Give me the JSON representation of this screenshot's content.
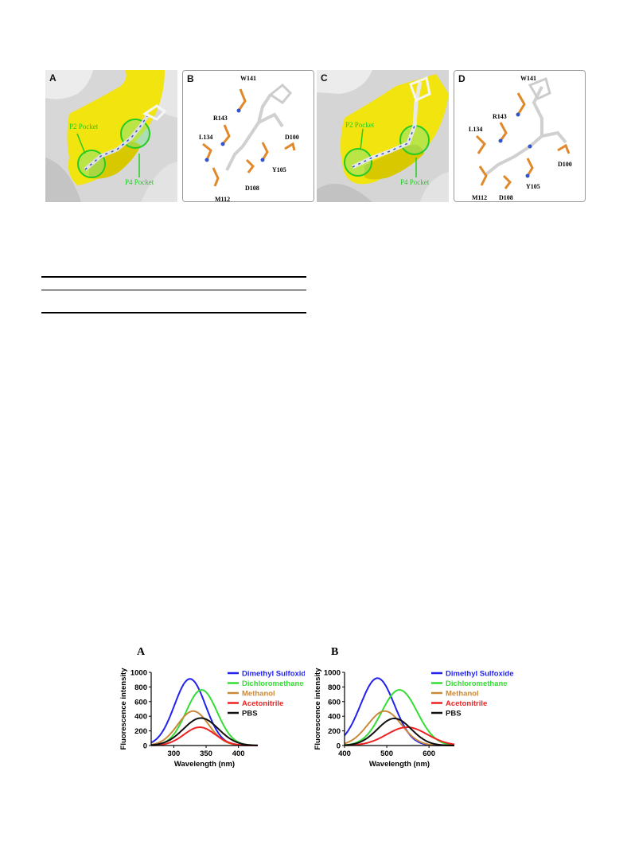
{
  "figure_top": {
    "panels": [
      {
        "letter": "A",
        "type": "surface",
        "pocket_labels": [
          "P2 Pocket",
          "P4 Pocket"
        ]
      },
      {
        "letter": "B",
        "type": "residues",
        "residues": [
          "W141",
          "R143",
          "L134",
          "D100",
          "Y105",
          "D108",
          "M112"
        ]
      },
      {
        "letter": "C",
        "type": "surface",
        "pocket_labels": [
          "P2 Pocket",
          "P4 Pocket"
        ]
      },
      {
        "letter": "D",
        "type": "residues",
        "residues": [
          "W141",
          "R143",
          "L134",
          "D100",
          "Y105",
          "M112",
          "D108"
        ]
      }
    ],
    "colors": {
      "surface": "#d4d4d4",
      "pocket": "#f0e00a",
      "label_green": "#22cc22",
      "residue_orange": "#e0882a",
      "ligand": "#eaeaea",
      "nitrogen": "#3355cc"
    }
  },
  "chart_data": [
    {
      "type": "line",
      "panel_label": "A",
      "xlabel": "Wavelength (nm)",
      "ylabel": "Fluorescence intensity",
      "xlim": [
        265,
        430
      ],
      "ylim": [
        0,
        1000
      ],
      "xticks": [
        300,
        350,
        400
      ],
      "yticks": [
        0,
        200,
        400,
        600,
        800,
        1000
      ],
      "legend_position": "top-right",
      "series": [
        {
          "name": "Dimethyl Sulfoxide",
          "color": "#2222ee",
          "peak_x": 325,
          "peak_y": 910,
          "width": 24
        },
        {
          "name": "Dichloromethane",
          "color": "#33dd33",
          "peak_x": 343,
          "peak_y": 760,
          "width": 24
        },
        {
          "name": "Methanol",
          "color": "#c88a3a",
          "peak_x": 330,
          "peak_y": 470,
          "width": 24
        },
        {
          "name": "Acetonitrile",
          "color": "#ee2222",
          "peak_x": 340,
          "peak_y": 250,
          "width": 24
        },
        {
          "name": "PBS",
          "color": "#111111",
          "peak_x": 342,
          "peak_y": 375,
          "width": 27
        }
      ]
    },
    {
      "type": "line",
      "panel_label": "B",
      "xlabel": "Wavelength (nm)",
      "ylabel": "Fluorescence intensity",
      "xlim": [
        400,
        660
      ],
      "ylim": [
        0,
        1000
      ],
      "xticks": [
        400,
        500,
        600
      ],
      "yticks": [
        0,
        200,
        400,
        600,
        800,
        1000
      ],
      "legend_position": "top-right",
      "series": [
        {
          "name": "Dimethyl Sulfoxide",
          "color": "#2222ee",
          "peak_x": 478,
          "peak_y": 920,
          "width": 40
        },
        {
          "name": "Dichloromethane",
          "color": "#33dd33",
          "peak_x": 530,
          "peak_y": 760,
          "width": 42
        },
        {
          "name": "Methanol",
          "color": "#c88a3a",
          "peak_x": 495,
          "peak_y": 470,
          "width": 40
        },
        {
          "name": "Acetonitrile",
          "color": "#ee2222",
          "peak_x": 548,
          "peak_y": 250,
          "width": 48
        },
        {
          "name": "PBS",
          "color": "#111111",
          "peak_x": 518,
          "peak_y": 370,
          "width": 40
        }
      ]
    }
  ]
}
